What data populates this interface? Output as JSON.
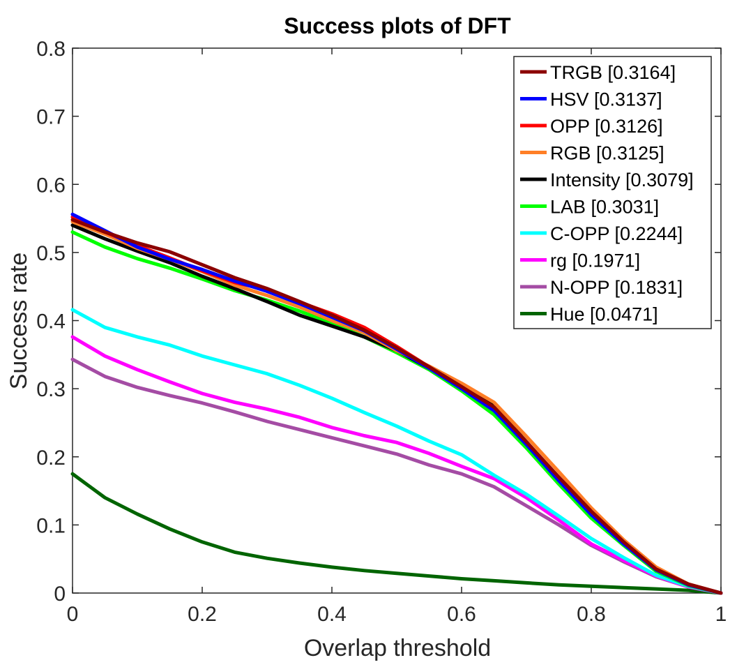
{
  "chart_data": {
    "type": "line",
    "title": "Success plots of DFT",
    "xlabel": "Overlap threshold",
    "ylabel": "Success rate",
    "xlim": [
      0,
      1
    ],
    "ylim": [
      0,
      0.8
    ],
    "xticks": [
      "0",
      "0.2",
      "0.4",
      "0.6",
      "0.8",
      "1"
    ],
    "yticks": [
      "0",
      "0.1",
      "0.2",
      "0.3",
      "0.4",
      "0.5",
      "0.6",
      "0.7",
      "0.8"
    ],
    "grid": false,
    "legend_position": "top-right",
    "x": [
      0,
      0.05,
      0.1,
      0.15,
      0.2,
      0.25,
      0.3,
      0.35,
      0.4,
      0.45,
      0.5,
      0.55,
      0.6,
      0.65,
      0.7,
      0.75,
      0.8,
      0.85,
      0.9,
      0.95,
      1
    ],
    "series": [
      {
        "name": "TRGB [0.3164]",
        "color": "#8b0000",
        "values": [
          0.548,
          0.53,
          0.514,
          0.501,
          0.482,
          0.463,
          0.447,
          0.428,
          0.408,
          0.386,
          0.36,
          0.332,
          0.303,
          0.273,
          0.222,
          0.17,
          0.12,
          0.075,
          0.035,
          0.013,
          0
        ]
      },
      {
        "name": "HSV [0.3137]",
        "color": "#0000ff",
        "values": [
          0.556,
          0.532,
          0.508,
          0.49,
          0.475,
          0.458,
          0.443,
          0.425,
          0.405,
          0.385,
          0.358,
          0.33,
          0.3,
          0.268,
          0.218,
          0.165,
          0.115,
          0.072,
          0.034,
          0.012,
          0
        ]
      },
      {
        "name": "OPP [0.3126]",
        "color": "#ff0000",
        "values": [
          0.552,
          0.53,
          0.51,
          0.492,
          0.473,
          0.456,
          0.445,
          0.427,
          0.41,
          0.39,
          0.362,
          0.332,
          0.3,
          0.27,
          0.22,
          0.168,
          0.118,
          0.074,
          0.035,
          0.012,
          0
        ]
      },
      {
        "name": "RGB [0.3125]",
        "color": "#ff7f27",
        "values": [
          0.545,
          0.527,
          0.506,
          0.49,
          0.472,
          0.452,
          0.437,
          0.42,
          0.4,
          0.382,
          0.356,
          0.333,
          0.308,
          0.28,
          0.23,
          0.178,
          0.125,
          0.078,
          0.038,
          0.013,
          0
        ]
      },
      {
        "name": "Intensity [0.3079]",
        "color": "#000000",
        "values": [
          0.54,
          0.52,
          0.502,
          0.485,
          0.465,
          0.447,
          0.428,
          0.408,
          0.392,
          0.376,
          0.356,
          0.33,
          0.306,
          0.275,
          0.222,
          0.168,
          0.12,
          0.075,
          0.036,
          0.012,
          0
        ]
      },
      {
        "name": "LAB [0.3031]",
        "color": "#00ff00",
        "values": [
          0.53,
          0.508,
          0.491,
          0.477,
          0.461,
          0.444,
          0.43,
          0.414,
          0.396,
          0.376,
          0.353,
          0.328,
          0.297,
          0.262,
          0.213,
          0.16,
          0.11,
          0.07,
          0.032,
          0.011,
          0
        ]
      },
      {
        "name": "C-OPP [0.2244]",
        "color": "#00ffff",
        "values": [
          0.416,
          0.39,
          0.376,
          0.364,
          0.348,
          0.335,
          0.322,
          0.305,
          0.286,
          0.265,
          0.245,
          0.223,
          0.203,
          0.173,
          0.145,
          0.113,
          0.08,
          0.052,
          0.026,
          0.01,
          0
        ]
      },
      {
        "name": "rg [0.1971]",
        "color": "#ff00ff",
        "values": [
          0.376,
          0.348,
          0.328,
          0.31,
          0.293,
          0.28,
          0.27,
          0.258,
          0.243,
          0.231,
          0.221,
          0.205,
          0.186,
          0.168,
          0.14,
          0.107,
          0.072,
          0.048,
          0.025,
          0.009,
          0
        ]
      },
      {
        "name": "N-OPP [0.1831]",
        "color": "#a44ca4",
        "values": [
          0.343,
          0.318,
          0.302,
          0.29,
          0.279,
          0.266,
          0.252,
          0.24,
          0.228,
          0.216,
          0.204,
          0.188,
          0.175,
          0.156,
          0.128,
          0.1,
          0.07,
          0.046,
          0.024,
          0.009,
          0
        ]
      },
      {
        "name": "Hue [0.0471]",
        "color": "#006400",
        "values": [
          0.175,
          0.14,
          0.116,
          0.094,
          0.075,
          0.06,
          0.051,
          0.044,
          0.038,
          0.033,
          0.029,
          0.025,
          0.021,
          0.018,
          0.015,
          0.012,
          0.01,
          0.008,
          0.006,
          0.004,
          0
        ]
      }
    ]
  }
}
